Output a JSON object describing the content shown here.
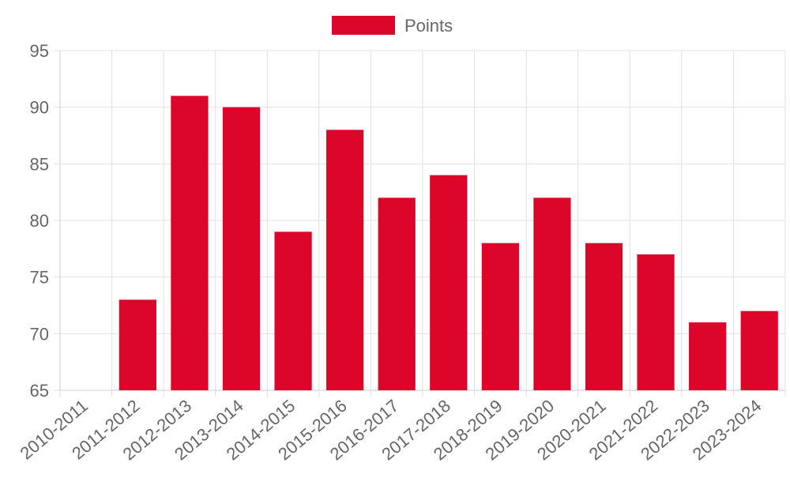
{
  "chart_data": {
    "type": "bar",
    "categories": [
      "2010-2011",
      "2011-2012",
      "2012-2013",
      "2013-2014",
      "2014-2015",
      "2015-2016",
      "2016-2017",
      "2017-2018",
      "2018-2019",
      "2019-2020",
      "2020-2021",
      "2021-2022",
      "2022-2023",
      "2023-2024"
    ],
    "series": [
      {
        "name": "Points",
        "values": [
          null,
          73,
          91,
          90,
          79,
          88,
          82,
          84,
          78,
          82,
          78,
          77,
          71,
          72
        ],
        "color": "#dc062b"
      }
    ],
    "ylim": [
      65,
      95
    ],
    "y_ticks": [
      65,
      70,
      75,
      80,
      85,
      90,
      95
    ],
    "grid": true,
    "legend_position": "top-center",
    "xlabel": "",
    "ylabel": ""
  },
  "colors": {
    "bar": "#dc062b",
    "grid": "#e0e0e0",
    "text": "#666666",
    "axis": "#cccccc"
  }
}
